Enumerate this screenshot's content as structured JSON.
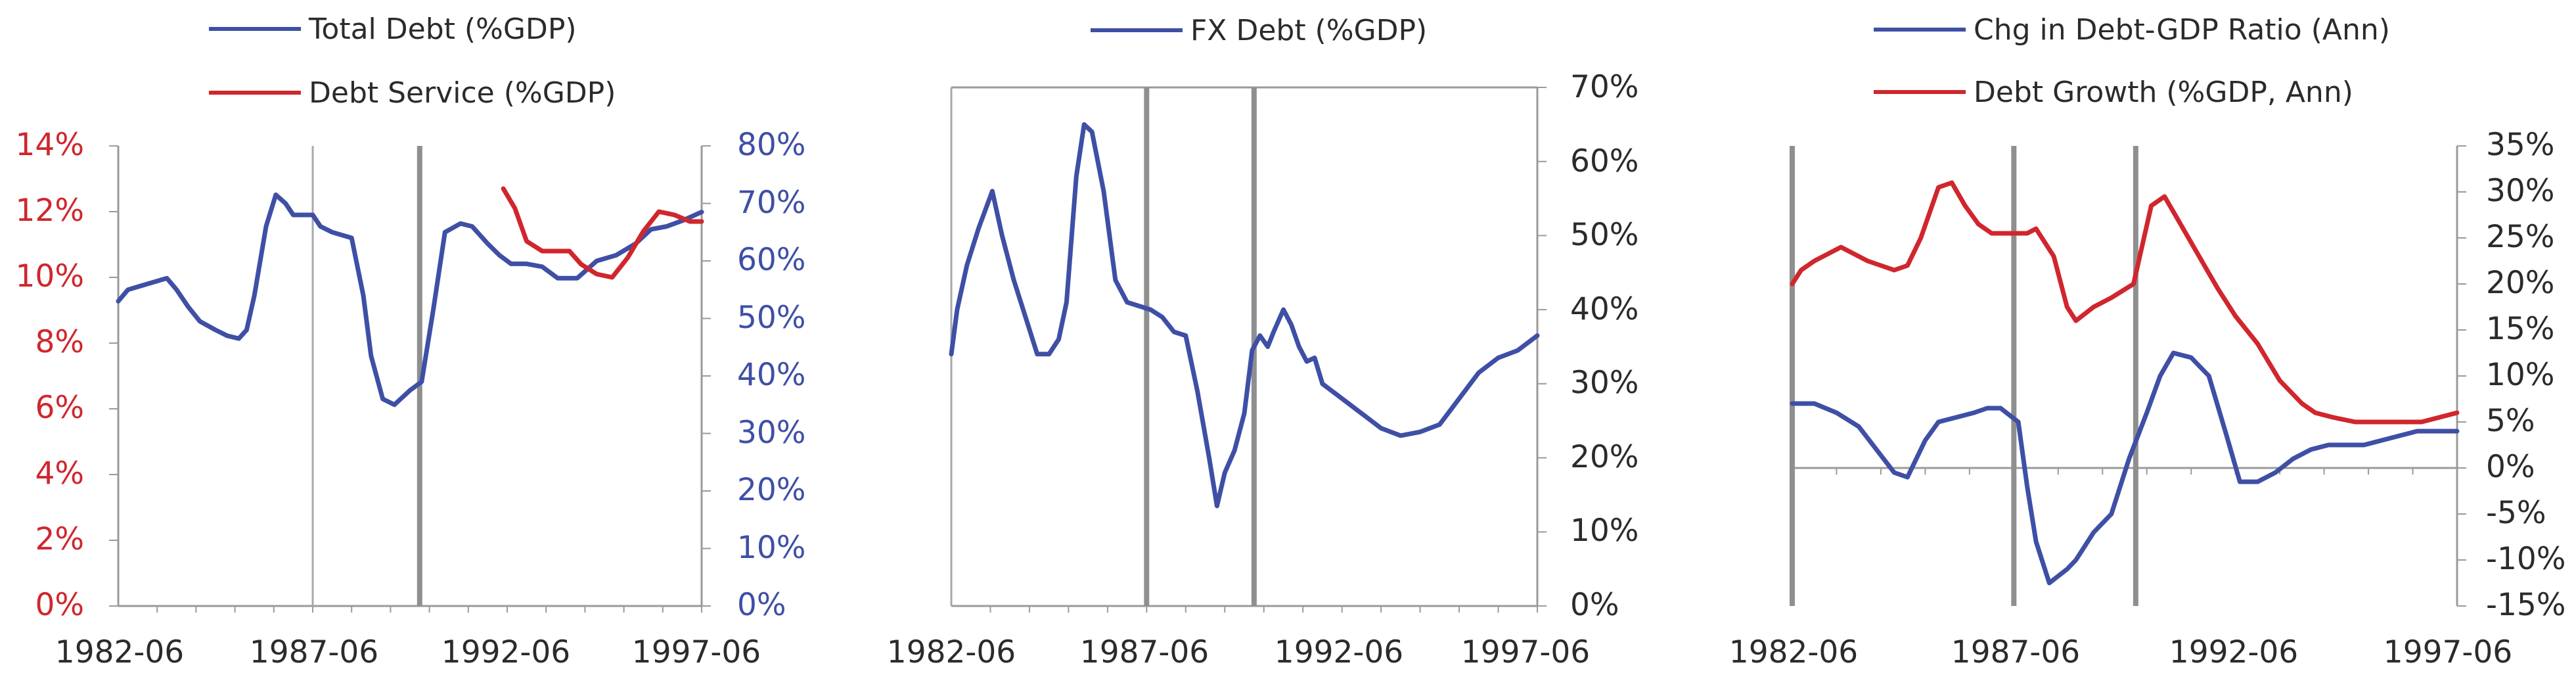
{
  "chart_data": [
    {
      "type": "line",
      "legend": [
        {
          "label": "Total Debt (%GDP)",
          "color": "#3e4fa5"
        },
        {
          "label": "Debt Service (%GDP)",
          "color": "#d0262d"
        }
      ],
      "x_ticks": [
        "1982-06",
        "1987-06",
        "1992-06",
        "1997-06"
      ],
      "x_range": [
        1982.5,
        1997.5
      ],
      "left_axis": {
        "color": "#d0262d",
        "ylim": [
          0,
          14
        ],
        "ticks": [
          "0%",
          "2%",
          "4%",
          "6%",
          "8%",
          "10%",
          "12%",
          "14%"
        ]
      },
      "right_axis": {
        "color": "#3e4fa5",
        "ylim": [
          0,
          80
        ],
        "ticks": [
          "0%",
          "10%",
          "20%",
          "30%",
          "40%",
          "50%",
          "60%",
          "70%",
          "80%"
        ]
      },
      "vlines": [
        {
          "x": 1987.5,
          "style": "thin"
        },
        {
          "x": 1990.25,
          "style": "thick"
        }
      ],
      "series": [
        {
          "name": "Total Debt (%GDP)",
          "axis": "right",
          "color": "#3e4fa5",
          "x": [
            1982.5,
            1982.75,
            1983.0,
            1983.5,
            1983.75,
            1984.0,
            1984.3,
            1984.6,
            1985.0,
            1985.3,
            1985.6,
            1985.8,
            1986.0,
            1986.3,
            1986.55,
            1986.8,
            1987.0,
            1987.5,
            1987.7,
            1988.0,
            1988.5,
            1988.8,
            1989.0,
            1989.3,
            1989.6,
            1990.0,
            1990.3,
            1990.6,
            1990.9,
            1991.3,
            1991.6,
            1992.0,
            1992.3,
            1992.6,
            1993.0,
            1993.4,
            1993.8,
            1994.3,
            1994.8,
            1995.3,
            1995.8,
            1996.2,
            1996.6,
            1997.0,
            1997.5
          ],
          "y": [
            53,
            55,
            55.5,
            56.5,
            57,
            55,
            52,
            49.5,
            48,
            47,
            46.5,
            48,
            54,
            66,
            71.5,
            70,
            68,
            68,
            66,
            65,
            64,
            54,
            43.5,
            36,
            35,
            37.5,
            39,
            51.5,
            65,
            66.5,
            66,
            63,
            61,
            59.5,
            59.5,
            59,
            57,
            57,
            60,
            61,
            63,
            65.5,
            66,
            67,
            68.5
          ]
        },
        {
          "name": "Debt Service (%GDP)",
          "axis": "left",
          "color": "#d0262d",
          "x": [
            1992.4,
            1992.7,
            1993.0,
            1993.4,
            1993.8,
            1994.1,
            1994.4,
            1994.8,
            1995.2,
            1995.6,
            1996.0,
            1996.4,
            1996.8,
            1997.2,
            1997.5
          ],
          "y": [
            12.7,
            12.1,
            11.1,
            10.8,
            10.8,
            10.8,
            10.4,
            10.1,
            10.0,
            10.6,
            11.4,
            12.0,
            11.9,
            11.7,
            11.7
          ]
        }
      ]
    },
    {
      "type": "line",
      "legend": [
        {
          "label": "FX Debt (%GDP)",
          "color": "#3e4fa5"
        }
      ],
      "x_ticks": [
        "1982-06",
        "1987-06",
        "1992-06",
        "1997-06"
      ],
      "x_range": [
        1982.5,
        1997.5
      ],
      "right_axis": {
        "color": "#2b2b2b",
        "ylim": [
          0,
          70
        ],
        "ticks": [
          "0%",
          "10%",
          "20%",
          "30%",
          "40%",
          "50%",
          "60%",
          "70%"
        ]
      },
      "vlines": [
        {
          "x": 1982.5,
          "style": "thin"
        },
        {
          "x": 1987.5,
          "style": "thick"
        },
        {
          "x": 1990.25,
          "style": "thick"
        }
      ],
      "series": [
        {
          "name": "FX Debt (%GDP)",
          "axis": "right",
          "color": "#3e4fa5",
          "x": [
            1982.5,
            1982.65,
            1982.9,
            1983.2,
            1983.55,
            1983.8,
            1984.1,
            1984.4,
            1984.7,
            1985.0,
            1985.25,
            1985.45,
            1985.7,
            1985.9,
            1986.1,
            1986.4,
            1986.7,
            1987.0,
            1987.3,
            1987.6,
            1987.9,
            1988.2,
            1988.5,
            1988.8,
            1989.1,
            1989.3,
            1989.5,
            1989.75,
            1990.0,
            1990.2,
            1990.4,
            1990.6,
            1990.75,
            1991.0,
            1991.2,
            1991.4,
            1991.6,
            1991.8,
            1992.0,
            1992.5,
            1993.0,
            1993.5,
            1994.0,
            1994.5,
            1995.0,
            1995.5,
            1996.0,
            1996.5,
            1997.0,
            1997.5
          ],
          "y": [
            34,
            40,
            46,
            51,
            56,
            50,
            44,
            39,
            34,
            34,
            36,
            41,
            58,
            65,
            64,
            56,
            44,
            41,
            40.5,
            40,
            39,
            37,
            36.5,
            29,
            20,
            13.5,
            18,
            21,
            26,
            34.5,
            36.5,
            35,
            37,
            40,
            38,
            35,
            33,
            33.5,
            30,
            28,
            26,
            24,
            23,
            23.5,
            24.5,
            28,
            31.5,
            33.5,
            34.5,
            36.5
          ]
        }
      ]
    },
    {
      "type": "line",
      "legend": [
        {
          "label": "Chg in Debt-GDP Ratio (Ann)",
          "color": "#3e4fa5"
        },
        {
          "label": "Debt Growth (%GDP, Ann)",
          "color": "#d0262d"
        }
      ],
      "x_ticks": [
        "1982-06",
        "1987-06",
        "1992-06",
        "1997-06"
      ],
      "x_range": [
        1982.5,
        1997.5
      ],
      "right_axis": {
        "color": "#2b2b2b",
        "ylim": [
          -15,
          35
        ],
        "ticks": [
          "-15%",
          "-10%",
          "-5%",
          "0%",
          "5%",
          "10%",
          "15%",
          "20%",
          "25%",
          "30%",
          "35%"
        ]
      },
      "vlines": [
        {
          "x": 1982.5,
          "style": "thick"
        },
        {
          "x": 1987.5,
          "style": "thick"
        },
        {
          "x": 1990.25,
          "style": "thick"
        }
      ],
      "series": [
        {
          "name": "Chg in Debt-GDP Ratio (Ann)",
          "axis": "right",
          "color": "#3e4fa5",
          "x": [
            1982.5,
            1983.0,
            1983.5,
            1984.0,
            1984.4,
            1984.8,
            1985.1,
            1985.5,
            1985.8,
            1986.2,
            1986.6,
            1986.9,
            1987.2,
            1987.6,
            1987.8,
            1988.0,
            1988.3,
            1988.7,
            1988.9,
            1989.3,
            1989.7,
            1990.1,
            1990.5,
            1990.8,
            1991.1,
            1991.5,
            1991.9,
            1992.3,
            1992.6,
            1993.0,
            1993.4,
            1993.8,
            1994.2,
            1994.6,
            1995.0,
            1995.4,
            1995.8,
            1996.2,
            1996.6,
            1997.0,
            1997.5
          ],
          "y": [
            7,
            7,
            6,
            4.5,
            2,
            -0.5,
            -1,
            3,
            5,
            5.5,
            6,
            6.5,
            6.5,
            5,
            -2,
            -8,
            -12.5,
            -11,
            -10,
            -7,
            -5,
            1,
            6,
            10,
            12.5,
            12,
            10,
            3.5,
            -1.5,
            -1.5,
            -0.5,
            1,
            2,
            2.5,
            2.5,
            2.5,
            3,
            3.5,
            4,
            4,
            4
          ]
        },
        {
          "name": "Debt Growth (%GDP, Ann)",
          "axis": "right",
          "color": "#d0262d",
          "x": [
            1982.5,
            1982.7,
            1983.0,
            1983.6,
            1983.8,
            1984.2,
            1984.8,
            1985.1,
            1985.4,
            1985.8,
            1986.1,
            1986.4,
            1986.7,
            1987.0,
            1987.5,
            1987.8,
            1988.0,
            1988.4,
            1988.7,
            1988.9,
            1989.3,
            1989.7,
            1990.2,
            1990.6,
            1990.9,
            1991.2,
            1991.5,
            1991.8,
            1992.1,
            1992.5,
            1993.0,
            1993.5,
            1994.0,
            1994.3,
            1994.7,
            1995.2,
            1995.7,
            1996.2,
            1996.7,
            1997.1,
            1997.5
          ],
          "y": [
            20,
            21.5,
            22.5,
            24,
            23.5,
            22.5,
            21.5,
            22,
            25,
            30.5,
            31,
            28.5,
            26.5,
            25.5,
            25.5,
            25.5,
            26,
            23,
            17.5,
            16,
            17.5,
            18.5,
            20,
            28.5,
            29.5,
            27,
            24.5,
            22,
            19.5,
            16.5,
            13.5,
            9.5,
            7,
            6,
            5.5,
            5,
            5,
            5,
            5,
            5.5,
            6
          ]
        }
      ]
    }
  ]
}
